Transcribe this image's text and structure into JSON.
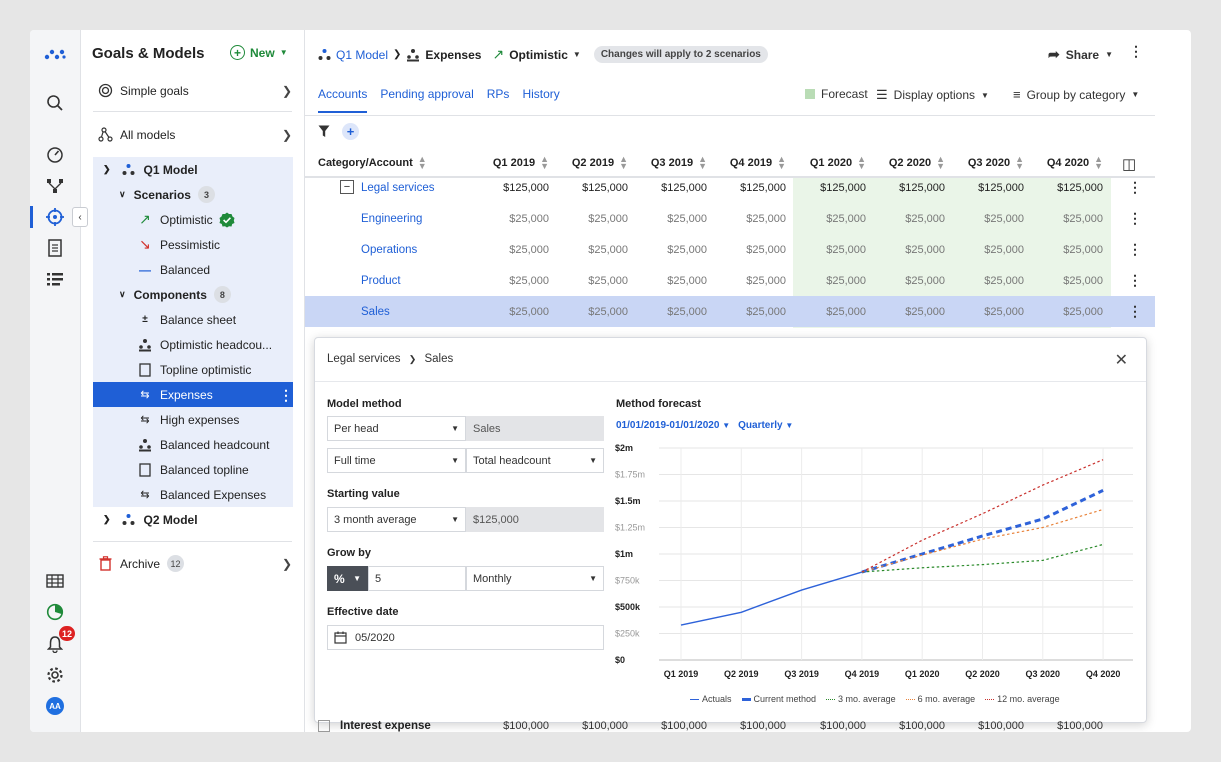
{
  "colors": {
    "accent": "#1f5fd6",
    "green": "#1f8a3a",
    "forecast_bg": "#eaf5e8",
    "selected_row": "#c9d6f5"
  },
  "rail": {
    "icons": [
      "logo-icon",
      "search-icon",
      "gauge-icon",
      "nodes-icon",
      "target-icon",
      "document-icon",
      "list-icon",
      "table-icon",
      "chart-icon",
      "bell-icon",
      "gear-icon"
    ],
    "notifications": "12",
    "avatar": "AA"
  },
  "sidebar": {
    "title": "Goals & Models",
    "new_label": "New",
    "simple_goals": "Simple goals",
    "all_models": "All models",
    "q1_model": "Q1 Model",
    "scenarios_label": "Scenarios",
    "scenarios_count": "3",
    "scenarios": [
      "Optimistic",
      "Pessimistic",
      "Balanced"
    ],
    "components_label": "Components",
    "components_count": "8",
    "components": [
      "Balance sheet",
      "Optimistic headcou...",
      "Topline optimistic",
      "Expenses",
      "High expenses",
      "Balanced headcount",
      "Balanced topline",
      "Balanced Expenses"
    ],
    "q2_model": "Q2 Model",
    "archive_label": "Archive",
    "archive_count": "12"
  },
  "header": {
    "breadcrumb_model": "Q1 Model",
    "breadcrumb_component": "Expenses",
    "scenario": "Optimistic",
    "pill": "Changes will apply to 2 scenarios",
    "share": "Share"
  },
  "tabs": [
    "Accounts",
    "Pending approval",
    "RPs",
    "History"
  ],
  "toolbar": {
    "forecast": "Forecast",
    "display_options": "Display options",
    "group_by": "Group by category"
  },
  "table": {
    "category_header": "Category/Account",
    "columns": [
      "Q1 2019",
      "Q2 2019",
      "Q3 2019",
      "Q4 2019",
      "Q1 2020",
      "Q2 2020",
      "Q3 2020",
      "Q4 2020"
    ],
    "rows": [
      {
        "name": "Legal services",
        "values": [
          "$125,000",
          "$125,000",
          "$125,000",
          "$125,000",
          "$125,000",
          "$125,000",
          "$125,000",
          "$125,000"
        ]
      },
      {
        "name": "Engineering",
        "values": [
          "$25,000",
          "$25,000",
          "$25,000",
          "$25,000",
          "$25,000",
          "$25,000",
          "$25,000",
          "$25,000"
        ]
      },
      {
        "name": "Operations",
        "values": [
          "$25,000",
          "$25,000",
          "$25,000",
          "$25,000",
          "$25,000",
          "$25,000",
          "$25,000",
          "$25,000"
        ]
      },
      {
        "name": "Product",
        "values": [
          "$25,000",
          "$25,000",
          "$25,000",
          "$25,000",
          "$25,000",
          "$25,000",
          "$25,000",
          "$25,000"
        ]
      },
      {
        "name": "Sales",
        "values": [
          "$25,000",
          "$25,000",
          "$25,000",
          "$25,000",
          "$25,000",
          "$25,000",
          "$25,000",
          "$25,000"
        ]
      }
    ],
    "bottom_row": {
      "name": "Interest expense",
      "values": [
        "$100,000",
        "$100,000",
        "$100,000",
        "$100,000",
        "$100,000",
        "$100,000",
        "$100,000",
        "$100,000"
      ]
    }
  },
  "popover": {
    "crumb_parent": "Legal services",
    "crumb_child": "Sales",
    "model_method_label": "Model method",
    "model_method": "Per head",
    "model_method_ro": "Sales",
    "time_type": "Full time",
    "headcount_type": "Total headcount",
    "starting_value_label": "Starting value",
    "starting_method": "3 month average",
    "starting_value": "$125,000",
    "grow_by_label": "Grow by",
    "grow_unit": "%",
    "grow_value": "5",
    "grow_period": "Monthly",
    "effective_date_label": "Effective date",
    "effective_date": "05/2020"
  },
  "chart_data": {
    "type": "line",
    "title": "Method forecast",
    "date_range": "01/01/2019-01/01/2020",
    "granularity": "Quarterly",
    "categories": [
      "Q1 2019",
      "Q2 2019",
      "Q3 2019",
      "Q4 2019",
      "Q1 2020",
      "Q2 2020",
      "Q3 2020",
      "Q4 2020"
    ],
    "y_ticks": [
      "$0",
      "$250k",
      "$500k",
      "$750k",
      "$1m",
      "$1.25m",
      "$1.5m",
      "$1.75m",
      "$2m"
    ],
    "ylim": [
      0,
      2000000
    ],
    "series": [
      {
        "name": "Actuals",
        "color": "#2e62d9",
        "style": "solid",
        "values": [
          330000,
          450000,
          660000,
          830000,
          null,
          null,
          null,
          null
        ]
      },
      {
        "name": "Current method",
        "color": "#2e62d9",
        "style": "bold-dash",
        "values": [
          null,
          null,
          null,
          830000,
          1000000,
          1170000,
          1330000,
          1600000
        ]
      },
      {
        "name": "3 mo. average",
        "color": "#2a8a2a",
        "style": "dotted",
        "values": [
          null,
          null,
          null,
          830000,
          870000,
          900000,
          940000,
          1090000
        ]
      },
      {
        "name": "6 mo. average",
        "color": "#e8823a",
        "style": "dotted",
        "values": [
          null,
          null,
          null,
          830000,
          990000,
          1140000,
          1250000,
          1420000
        ]
      },
      {
        "name": "12 mo. average",
        "color": "#c9302c",
        "style": "dotted",
        "values": [
          null,
          null,
          null,
          830000,
          1130000,
          1380000,
          1650000,
          1890000
        ]
      }
    ]
  }
}
